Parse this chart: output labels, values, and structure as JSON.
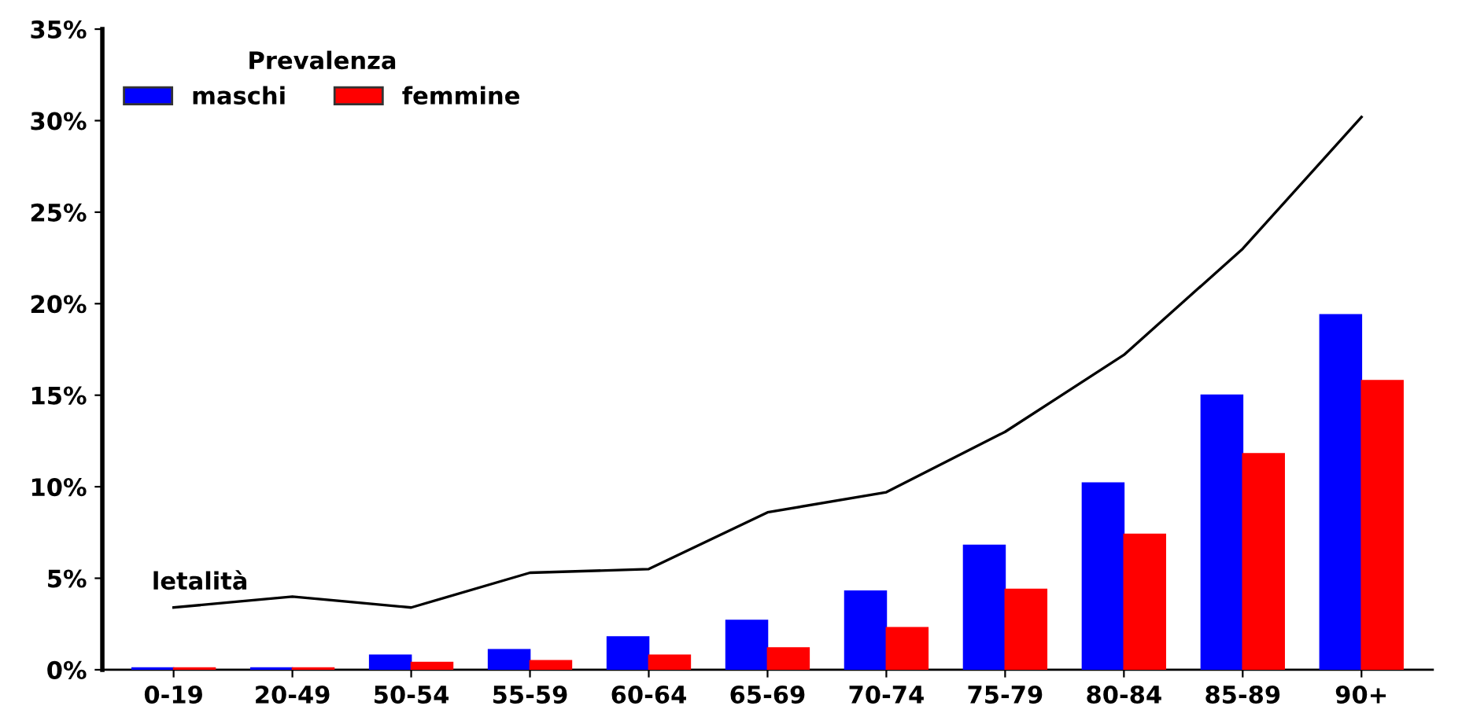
{
  "chart_data": {
    "type": "bar",
    "legend_title": "Prevalenza",
    "legend": "top left",
    "grid": false,
    "categories": [
      "0-19",
      "20-49",
      "50-54",
      "55-59",
      "60-64",
      "65-69",
      "70-74",
      "75-79",
      "80-84",
      "85-89",
      "90+"
    ],
    "series": [
      {
        "name": "maschi",
        "color": "#0000ff",
        "values": [
          0.1,
          0.1,
          0.8,
          1.1,
          1.8,
          2.7,
          4.3,
          6.8,
          10.2,
          15.0,
          19.4
        ]
      },
      {
        "name": "femmine",
        "color": "#ff0000",
        "values": [
          0.1,
          0.1,
          0.4,
          0.5,
          0.8,
          1.2,
          2.3,
          4.4,
          7.4,
          11.8,
          15.8
        ]
      },
      {
        "name": "letalità",
        "type": "line",
        "color": "#000000",
        "values": [
          3.4,
          4.0,
          3.4,
          5.3,
          5.5,
          8.6,
          9.7,
          13.0,
          17.2,
          23.0,
          30.2
        ]
      }
    ],
    "ylim": [
      0,
      35
    ],
    "yticks": [
      {
        "value": 0,
        "label": "0%"
      },
      {
        "value": 5,
        "label": "5%"
      },
      {
        "value": 10,
        "label": "10%"
      },
      {
        "value": 15,
        "label": "15%"
      },
      {
        "value": 20,
        "label": "20%"
      },
      {
        "value": 25,
        "label": "25%"
      },
      {
        "value": 30,
        "label": "30%"
      },
      {
        "value": 35,
        "label": "35%"
      }
    ]
  }
}
